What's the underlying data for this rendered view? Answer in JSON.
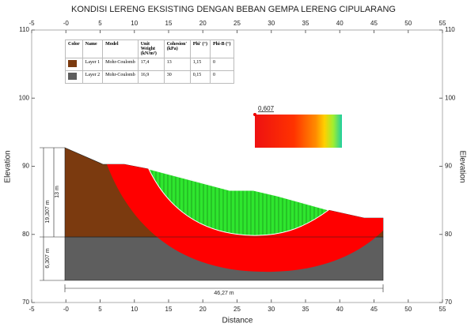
{
  "title": "KONDISI LERENG EKSISTING DENGAN BEBAN GEMPA LERENG CIPULARANG",
  "x_axis": {
    "label": "Distance",
    "lim": [
      -5,
      55
    ],
    "ticks": [
      -5,
      {
        "value": 0,
        "label": "-0"
      },
      5,
      10,
      15,
      20,
      25,
      30,
      35,
      40,
      45,
      50,
      55
    ]
  },
  "y_axis": {
    "label": "Elevation",
    "lim": [
      70,
      110
    ],
    "ticks": [
      70,
      80,
      90,
      100,
      110
    ]
  },
  "table": {
    "header": [
      "Color",
      "Name",
      "Model",
      "Unit Weight (kN/m³)",
      "Cohesion' (kPa)",
      "Phi' (°)",
      "Phi-B (°)"
    ],
    "rows": [
      {
        "color": "#7b3a0f",
        "cells": [
          "Layer 1",
          "Mohr-Coulomb",
          "17,4",
          "13",
          "1,15",
          "0"
        ]
      },
      {
        "color": "#5e5e5e",
        "cells": [
          "Layer 2",
          "Mohr-Coulomb",
          "16,9",
          "30",
          "0,15",
          "0"
        ]
      }
    ]
  },
  "dimensions": {
    "total_height": "19,307 m",
    "upper_height": "13 m",
    "lower_height": "6,307 m",
    "width": "46,27 m"
  },
  "factor_of_safety": "0,607"
}
